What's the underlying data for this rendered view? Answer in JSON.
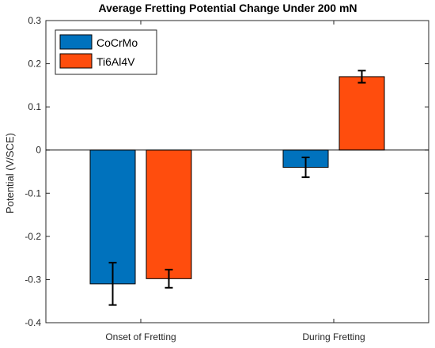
{
  "chart_data": {
    "type": "bar",
    "title": "Average Fretting Potential Change Under 200 mN",
    "xlabel": "",
    "ylabel": "Potential (V/SCE)",
    "ylim": [
      -0.4,
      0.3
    ],
    "yticks": [
      -0.4,
      -0.3,
      -0.2,
      -0.1,
      0,
      0.1,
      0.2,
      0.3
    ],
    "ytick_labels": [
      "-0.4",
      "-0.3",
      "-0.2",
      "-0.1",
      "0",
      "0.1",
      "0.2",
      "0.3"
    ],
    "categories": [
      "Onset of Fretting",
      "During Fretting"
    ],
    "series": [
      {
        "name": "CoCrMo",
        "color": "#0072BD",
        "values": [
          -0.31,
          -0.04
        ],
        "errors": [
          0.049,
          0.023
        ]
      },
      {
        "name": "Ti6Al4V",
        "color": "#FF4D0D",
        "values": [
          -0.298,
          0.17
        ],
        "errors": [
          0.021,
          0.014
        ]
      }
    ],
    "grid": false,
    "legend": "top-left"
  }
}
